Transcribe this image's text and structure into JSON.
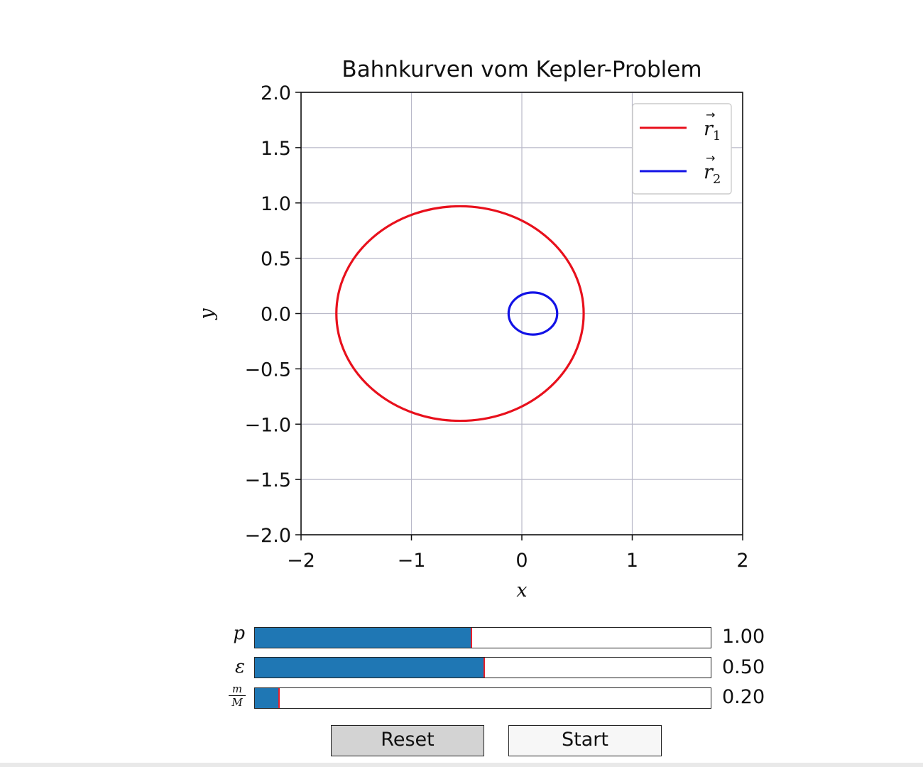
{
  "chart_data": {
    "type": "line",
    "title": "Bahnkurven vom Kepler-Problem",
    "xlabel": "x",
    "ylabel": "y",
    "xlim": [
      -2,
      2
    ],
    "ylim": [
      -2,
      2
    ],
    "xticks": [
      -2,
      -1,
      0,
      1,
      2
    ],
    "xtick_labels": [
      "−2",
      "−1",
      "0",
      "1",
      "2"
    ],
    "yticks": [
      2.0,
      1.5,
      1.0,
      0.5,
      0.0,
      -0.5,
      -1.0,
      -1.5,
      -2.0
    ],
    "ytick_labels": [
      "2.0",
      "1.5",
      "1.0",
      "0.5",
      "0.0",
      "−0.5",
      "−1.0",
      "−1.5",
      "−2.0"
    ],
    "grid": true,
    "legend_position": "top-right",
    "series": [
      {
        "name": "r1",
        "color": "#e8101c",
        "shape": "ellipse",
        "center": [
          -0.56,
          0.0
        ],
        "semi_axes": [
          1.12,
          0.97
        ]
      },
      {
        "name": "r2",
        "color": "#1212e6",
        "shape": "ellipse",
        "center": [
          0.1,
          0.0
        ],
        "semi_axes": [
          0.22,
          0.19
        ]
      }
    ]
  },
  "sliders": [
    {
      "label": "p",
      "value_text": "1.00",
      "fraction": 0.475
    },
    {
      "label": "ε",
      "value_text": "0.50",
      "fraction": 0.503
    },
    {
      "label_num": "m",
      "label_den": "M",
      "value_text": "0.20",
      "fraction": 0.052
    }
  ],
  "buttons": {
    "reset_label": "Reset",
    "start_label": "Start"
  },
  "colors": {
    "slider_fill": "#1f77b4",
    "slider_handle": "#e8202a",
    "reset_bg": "#d3d3d3",
    "start_bg": "#f7f7f7"
  }
}
